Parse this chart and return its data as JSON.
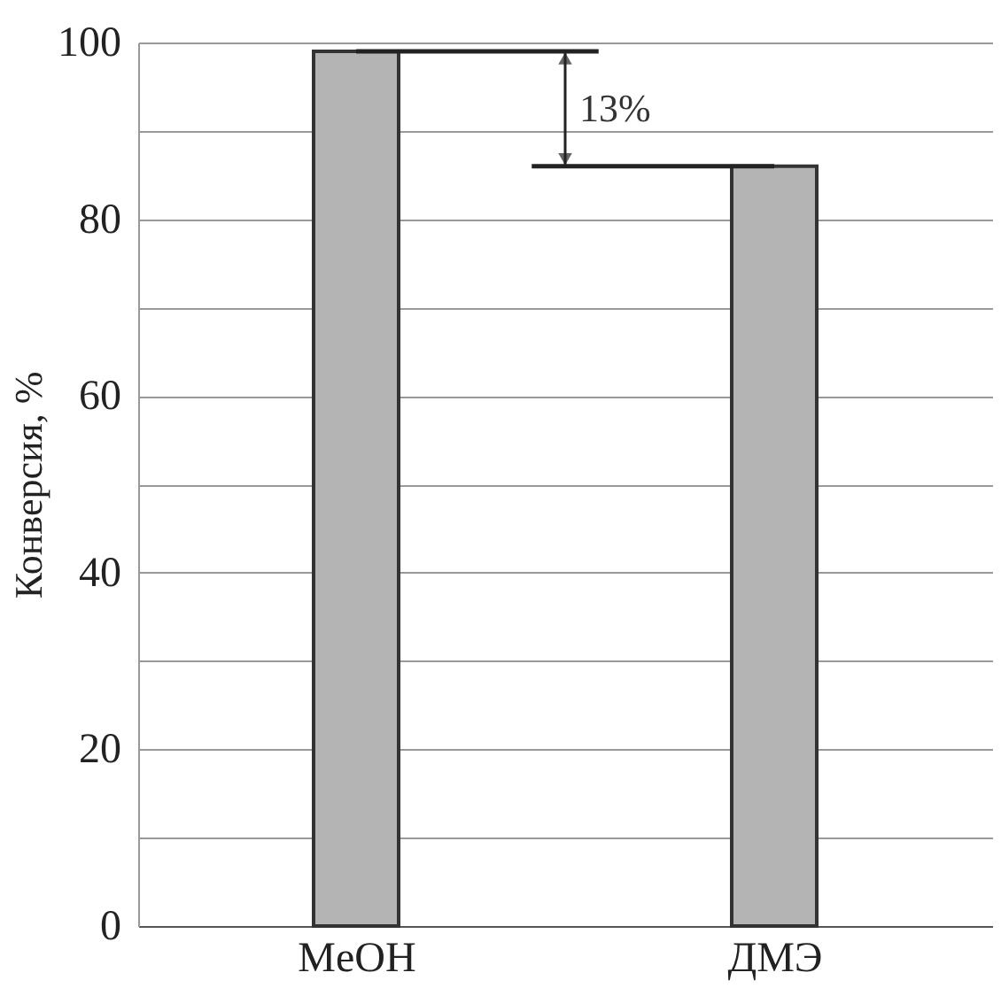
{
  "chart_data": {
    "type": "bar",
    "ylabel": "Конверсия, %",
    "categories": [
      "MeOH",
      "ДМЭ"
    ],
    "values": [
      99,
      86
    ],
    "color": "#b4b4b4",
    "ylim": [
      0,
      100
    ],
    "yticks": [
      0,
      {
        "value": 10,
        "label": null
      },
      20,
      {
        "value": 30,
        "label": null
      },
      40,
      {
        "value": 50,
        "label": null
      },
      60,
      {
        "value": 70,
        "label": null
      },
      80,
      {
        "value": 90,
        "label": null
      },
      100
    ],
    "grid": "y",
    "ref_lines": [
      {
        "axis": "y",
        "value": 99,
        "color": "#222222"
      },
      {
        "axis": "y",
        "value": 86,
        "color": "#222222"
      }
    ],
    "annotations": [
      "13%"
    ]
  }
}
